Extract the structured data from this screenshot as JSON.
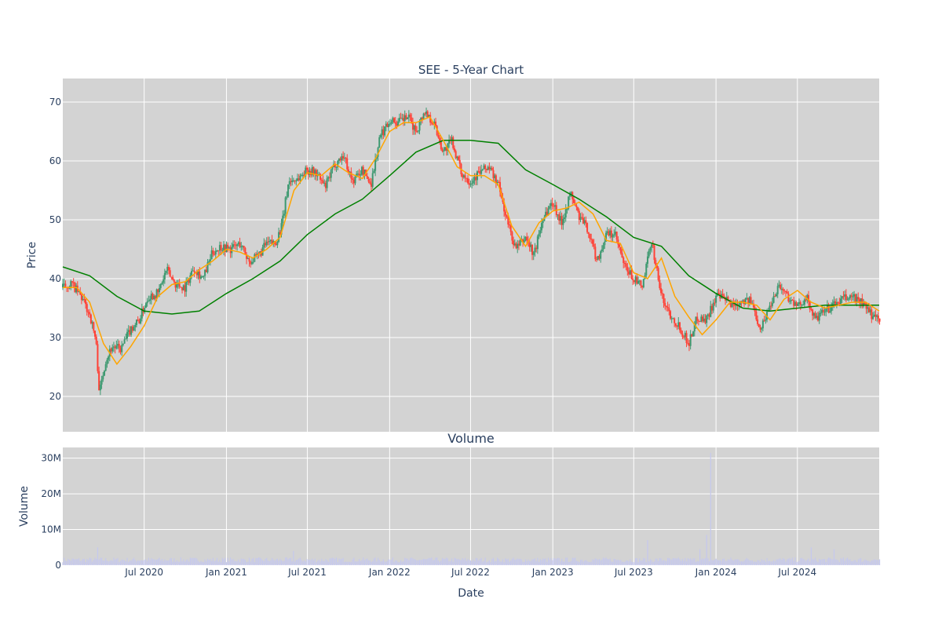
{
  "chart_data": [
    {
      "type": "candlestick",
      "title": "SEE - 5-Year Chart",
      "ylabel": "Price",
      "ylim": [
        14,
        74
      ],
      "yticks": [
        20,
        30,
        40,
        50,
        60,
        70
      ],
      "date_range": [
        "2020-01-01",
        "2024-12-31"
      ],
      "colors": {
        "up": "#3d9970",
        "down": "#ff4136",
        "ma_short": "#ffa500",
        "ma_long": "#008000",
        "plot_bg": "#d3d3d3"
      },
      "series": [
        {
          "name": "",
          "kind": "close",
          "x": [
            "2020-01-01",
            "2020-01-20",
            "2020-02-10",
            "2020-03-01",
            "2020-03-15",
            "2020-03-23",
            "2020-04-05",
            "2020-04-20",
            "2020-05-10",
            "2020-06-01",
            "2020-06-20",
            "2020-07-10",
            "2020-08-01",
            "2020-08-20",
            "2020-09-10",
            "2020-10-01",
            "2020-10-20",
            "2020-11-10",
            "2020-12-01",
            "2020-12-20",
            "2021-01-10",
            "2021-02-01",
            "2021-02-20",
            "2021-03-10",
            "2021-04-01",
            "2021-04-20",
            "2021-05-05",
            "2021-05-20",
            "2021-06-10",
            "2021-07-01",
            "2021-07-20",
            "2021-08-10",
            "2021-09-01",
            "2021-09-20",
            "2021-10-10",
            "2021-11-01",
            "2021-11-20",
            "2021-12-10",
            "2022-01-01",
            "2022-01-20",
            "2022-02-10",
            "2022-03-01",
            "2022-03-20",
            "2022-04-10",
            "2022-05-01",
            "2022-05-20",
            "2022-06-10",
            "2022-07-01",
            "2022-07-20",
            "2022-08-10",
            "2022-09-01",
            "2022-09-20",
            "2022-10-10",
            "2022-11-01",
            "2022-11-20",
            "2022-12-10",
            "2023-01-01",
            "2023-01-20",
            "2023-02-10",
            "2023-03-01",
            "2023-03-20",
            "2023-04-10",
            "2023-05-01",
            "2023-05-20",
            "2023-06-10",
            "2023-07-01",
            "2023-07-20",
            "2023-08-10",
            "2023-09-01",
            "2023-09-20",
            "2023-10-10",
            "2023-11-01",
            "2023-11-20",
            "2023-12-10",
            "2024-01-01",
            "2024-01-20",
            "2024-02-10",
            "2024-03-01",
            "2024-03-20",
            "2024-04-10",
            "2024-05-01",
            "2024-05-20",
            "2024-06-10",
            "2024-07-01",
            "2024-07-20",
            "2024-08-10",
            "2024-09-01",
            "2024-09-20",
            "2024-10-10",
            "2024-11-01",
            "2024-11-20",
            "2024-12-10",
            "2024-12-31"
          ],
          "y": [
            38.5,
            39.2,
            37.0,
            34.0,
            29.5,
            20.5,
            26.0,
            28.5,
            28.0,
            31.5,
            33.0,
            37.0,
            37.5,
            41.5,
            39.0,
            38.5,
            42.0,
            40.0,
            44.5,
            45.5,
            45.0,
            46.0,
            43.0,
            43.5,
            46.0,
            46.0,
            49.0,
            56.5,
            57.0,
            58.5,
            58.0,
            55.5,
            59.5,
            61.0,
            56.5,
            58.5,
            56.0,
            64.0,
            67.0,
            66.5,
            67.5,
            65.0,
            68.5,
            66.5,
            61.5,
            63.5,
            58.0,
            56.5,
            58.0,
            59.0,
            56.0,
            50.0,
            45.0,
            47.0,
            44.0,
            50.5,
            53.0,
            49.5,
            54.5,
            50.5,
            48.5,
            43.0,
            47.5,
            47.5,
            42.0,
            40.0,
            38.5,
            46.5,
            37.0,
            34.0,
            32.0,
            29.0,
            33.5,
            33.0,
            37.0,
            36.5,
            35.5,
            36.5,
            36.0,
            31.5,
            35.5,
            39.0,
            37.0,
            35.0,
            37.0,
            33.0,
            34.5,
            35.5,
            36.5,
            37.0,
            36.0,
            34.0,
            33.5
          ]
        },
        {
          "name": "",
          "kind": "short_ma",
          "x": [
            "2020-01-01",
            "2020-02-01",
            "2020-03-01",
            "2020-04-01",
            "2020-05-01",
            "2020-06-01",
            "2020-07-01",
            "2020-08-01",
            "2020-09-01",
            "2020-10-01",
            "2020-11-01",
            "2020-12-01",
            "2021-01-01",
            "2021-02-01",
            "2021-03-01",
            "2021-04-01",
            "2021-05-01",
            "2021-06-01",
            "2021-07-01",
            "2021-08-01",
            "2021-09-01",
            "2021-10-01",
            "2021-11-01",
            "2021-12-01",
            "2022-01-01",
            "2022-02-01",
            "2022-03-01",
            "2022-04-01",
            "2022-05-01",
            "2022-06-01",
            "2022-07-01",
            "2022-08-01",
            "2022-09-01",
            "2022-10-01",
            "2022-11-01",
            "2022-12-01",
            "2023-01-01",
            "2023-02-01",
            "2023-03-01",
            "2023-04-01",
            "2023-05-01",
            "2023-06-01",
            "2023-07-01",
            "2023-08-01",
            "2023-09-01",
            "2023-10-01",
            "2023-11-01",
            "2023-12-01",
            "2024-01-01",
            "2024-02-01",
            "2024-03-01",
            "2024-04-01",
            "2024-05-01",
            "2024-06-01",
            "2024-07-01",
            "2024-08-01",
            "2024-09-01",
            "2024-10-01",
            "2024-11-01",
            "2024-12-01",
            "2024-12-31"
          ],
          "y": [
            38.5,
            38.5,
            36.0,
            29.0,
            25.5,
            28.5,
            32.0,
            37.0,
            39.0,
            39.5,
            41.5,
            43.0,
            45.0,
            44.5,
            43.5,
            45.0,
            47.0,
            55.0,
            58.0,
            57.5,
            59.5,
            58.0,
            57.0,
            60.5,
            65.0,
            66.5,
            66.5,
            67.5,
            63.5,
            59.0,
            57.5,
            57.5,
            56.0,
            49.0,
            45.5,
            49.5,
            51.5,
            52.0,
            53.0,
            51.0,
            46.5,
            46.0,
            41.0,
            40.0,
            43.5,
            37.0,
            33.5,
            30.5,
            33.0,
            36.0,
            36.0,
            35.5,
            33.0,
            36.5,
            38.0,
            36.0,
            35.0,
            35.5,
            36.0,
            36.0,
            34.5
          ]
        },
        {
          "name": "",
          "kind": "long_ma",
          "x": [
            "2020-01-01",
            "2020-03-01",
            "2020-05-01",
            "2020-07-01",
            "2020-09-01",
            "2020-11-01",
            "2021-01-01",
            "2021-03-01",
            "2021-05-01",
            "2021-07-01",
            "2021-09-01",
            "2021-11-01",
            "2022-01-01",
            "2022-03-01",
            "2022-05-01",
            "2022-07-01",
            "2022-09-01",
            "2022-11-01",
            "2023-01-01",
            "2023-03-01",
            "2023-05-01",
            "2023-07-01",
            "2023-09-01",
            "2023-11-01",
            "2024-01-01",
            "2024-03-01",
            "2024-05-01",
            "2024-07-01",
            "2024-09-01",
            "2024-11-01",
            "2024-12-31"
          ],
          "y": [
            42.0,
            40.5,
            37.0,
            34.5,
            34.0,
            34.5,
            37.5,
            40.0,
            43.0,
            47.5,
            51.0,
            53.5,
            57.5,
            61.5,
            63.5,
            63.5,
            63.0,
            58.5,
            56.0,
            53.5,
            50.5,
            47.0,
            45.5,
            40.5,
            37.5,
            35.0,
            34.5,
            35.0,
            35.5,
            35.5,
            35.5
          ]
        }
      ]
    },
    {
      "type": "bar",
      "title": "Volume",
      "ylabel": "Volume",
      "xlabel": "Date",
      "ylim": [
        0,
        33000000
      ],
      "yticks": [
        0,
        10000000,
        20000000,
        30000000
      ],
      "ytick_labels": [
        "0",
        "10M",
        "20M",
        "30M"
      ],
      "xticks": [
        "2020-07-01",
        "2021-01-01",
        "2021-07-01",
        "2022-01-01",
        "2022-07-01",
        "2023-01-01",
        "2023-07-01",
        "2024-01-01",
        "2024-07-01"
      ],
      "xtick_labels": [
        "Jul 2020",
        "Jan 2021",
        "Jul 2021",
        "Jan 2022",
        "Jul 2022",
        "Jan 2023",
        "Jul 2023",
        "Jan 2024",
        "Jul 2024"
      ],
      "typical_volume": 1500000,
      "spikes": [
        {
          "x": "2020-03-20",
          "y": 5000000
        },
        {
          "x": "2021-06-01",
          "y": 4000000
        },
        {
          "x": "2023-08-01",
          "y": 7000000
        },
        {
          "x": "2023-11-25",
          "y": 4500000
        },
        {
          "x": "2023-12-12",
          "y": 8500000
        },
        {
          "x": "2023-12-20",
          "y": 31500000
        },
        {
          "x": "2024-08-01",
          "y": 5000000
        },
        {
          "x": "2024-09-20",
          "y": 4500000
        }
      ],
      "colors": {
        "bar": "#c5c8ee",
        "plot_bg": "#d3d3d3"
      }
    }
  ]
}
